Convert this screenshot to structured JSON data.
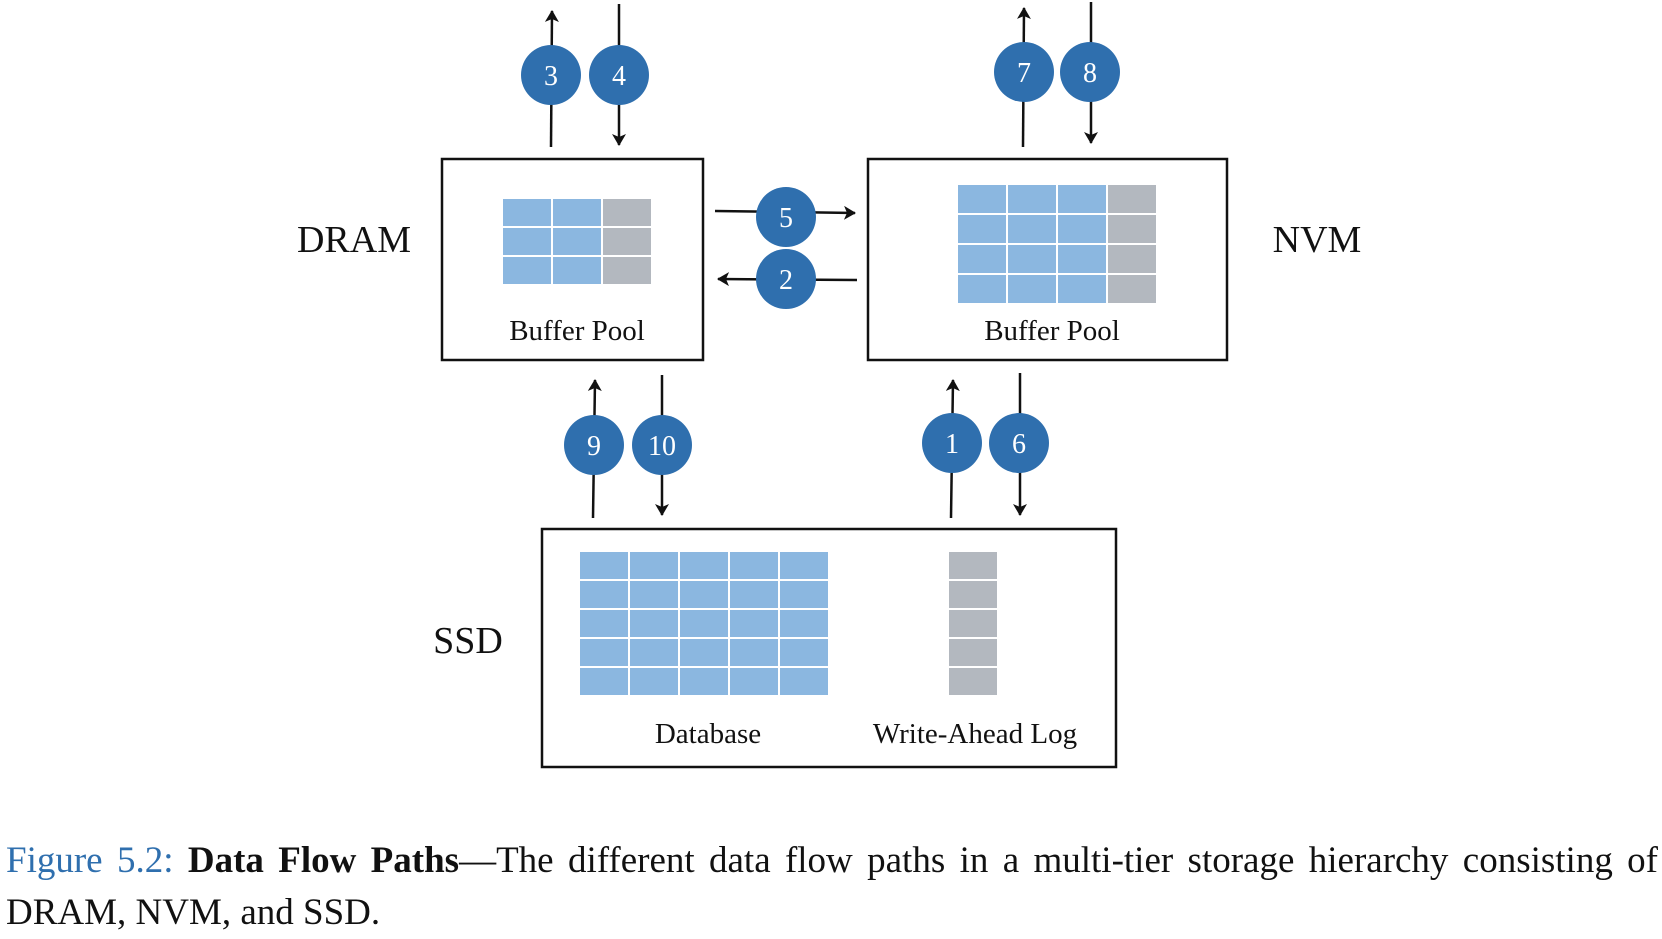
{
  "colors": {
    "badge": "#2f6fae",
    "cell_blue": "#8bb7e0",
    "cell_gray": "#b3b8bf",
    "line": "#111111",
    "caption_accent": "#2f6fae"
  },
  "tiers": {
    "dram": {
      "label": "DRAM",
      "box_label": "Buffer Pool"
    },
    "nvm": {
      "label": "NVM",
      "box_label": "Buffer Pool"
    },
    "ssd": {
      "label": "SSD",
      "database_label": "Database",
      "wal_label": "Write-Ahead Log"
    }
  },
  "paths": [
    {
      "id": "1",
      "from": "SSD",
      "to": "NVM"
    },
    {
      "id": "2",
      "from": "NVM",
      "to": "DRAM"
    },
    {
      "id": "3",
      "from": "DRAM",
      "to": "out"
    },
    {
      "id": "4",
      "from": "in",
      "to": "DRAM"
    },
    {
      "id": "5",
      "from": "DRAM",
      "to": "NVM"
    },
    {
      "id": "6",
      "from": "NVM",
      "to": "SSD"
    },
    {
      "id": "7",
      "from": "NVM",
      "to": "out"
    },
    {
      "id": "8",
      "from": "in",
      "to": "NVM"
    },
    {
      "id": "9",
      "from": "SSD",
      "to": "DRAM"
    },
    {
      "id": "10",
      "from": "DRAM",
      "to": "SSD"
    }
  ],
  "caption": {
    "figure_number": "Figure 5.2:",
    "title": "Data Flow Paths",
    "text": "—The different data flow paths in a multi-tier storage hierarchy consisting of DRAM, NVM, and SSD."
  }
}
